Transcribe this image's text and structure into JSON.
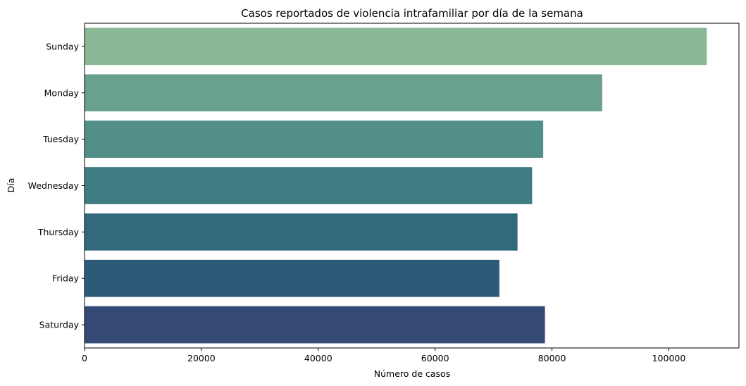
{
  "chart_data": {
    "type": "bar",
    "orientation": "horizontal",
    "title": "Casos reportados de violencia intrafamiliar por día de la semana",
    "xlabel": "Número de casos",
    "ylabel": "Día",
    "categories": [
      "Sunday",
      "Monday",
      "Tuesday",
      "Wednesday",
      "Thursday",
      "Friday",
      "Saturday"
    ],
    "values": [
      106500,
      88600,
      78500,
      76600,
      74100,
      71000,
      78800
    ],
    "xlim": [
      0,
      112000
    ],
    "xticks": [
      0,
      20000,
      40000,
      60000,
      80000,
      100000
    ],
    "xtick_labels": [
      "0",
      "20000",
      "40000",
      "60000",
      "80000",
      "100000"
    ],
    "grid": false,
    "colors": [
      "#8ab795",
      "#6aa08f",
      "#528f88",
      "#407d83",
      "#33697d",
      "#2e5a7a",
      "#344a74"
    ]
  }
}
